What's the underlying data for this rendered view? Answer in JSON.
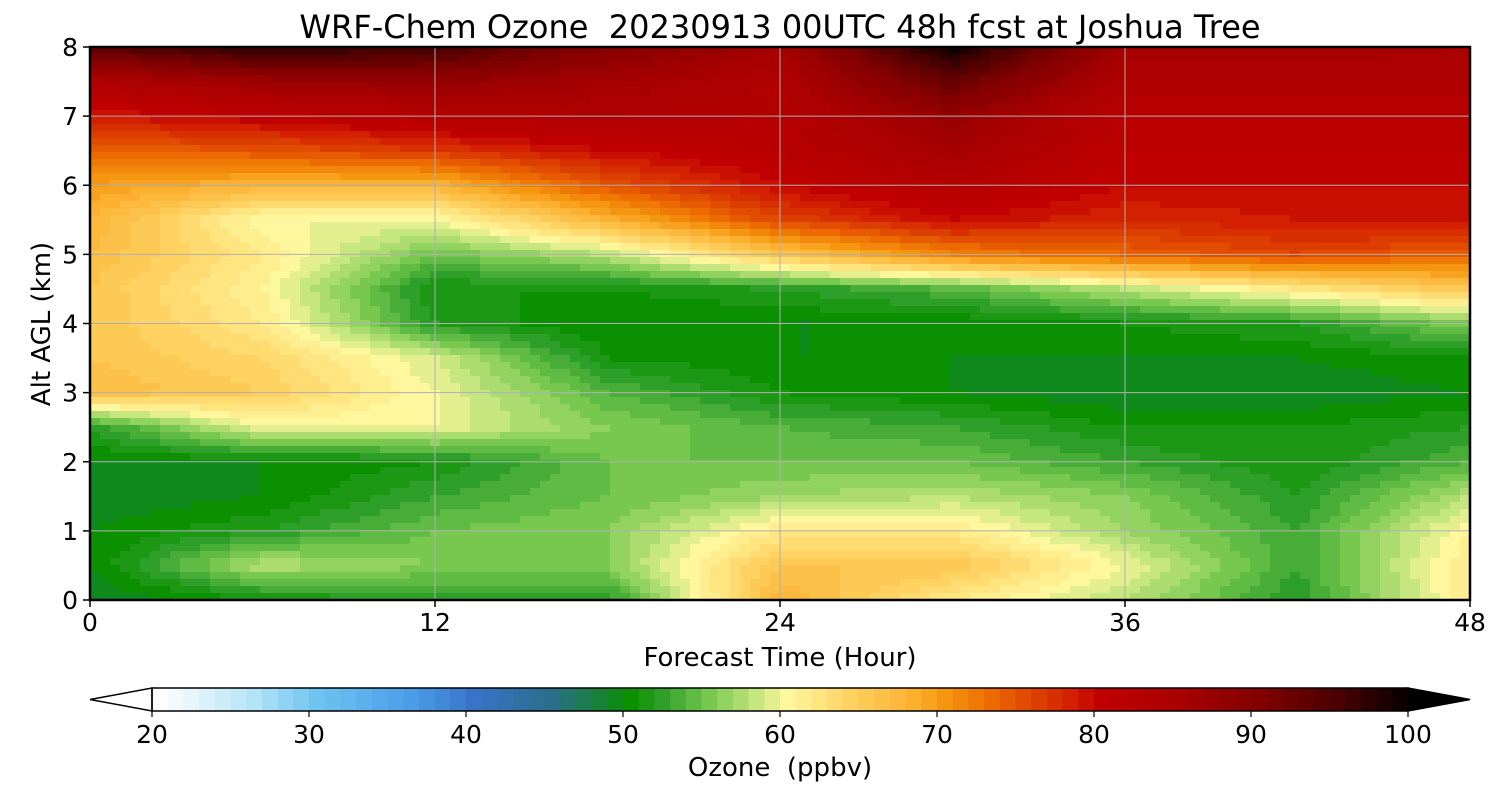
{
  "chart_data": {
    "type": "heatmap",
    "title": "WRF-Chem Ozone  20230913 00UTC 48h fcst at Joshua Tree",
    "xlabel": "Forecast Time (Hour)",
    "ylabel": "Alt AGL (km)",
    "xlim": [
      0,
      48
    ],
    "ylim": [
      0,
      8
    ],
    "x_ticks": [
      "0",
      "12",
      "24",
      "36",
      "48"
    ],
    "y_ticks": [
      "0",
      "1",
      "2",
      "3",
      "4",
      "5",
      "6",
      "7",
      "8"
    ],
    "grid": true,
    "x": [
      0,
      6,
      12,
      18,
      24,
      30,
      36,
      42,
      48
    ],
    "y": [
      0,
      0.5,
      1,
      1.5,
      2,
      2.5,
      3,
      3.5,
      4,
      4.5,
      5,
      5.5,
      6,
      6.5,
      7,
      7.5,
      8
    ],
    "z": [
      [
        49,
        51,
        52,
        52,
        68,
        62,
        58,
        52,
        62
      ],
      [
        50,
        58,
        56,
        56,
        66,
        66,
        60,
        53,
        62
      ],
      [
        50,
        52,
        55,
        56,
        62,
        62,
        57,
        53,
        61
      ],
      [
        49,
        50,
        53,
        55,
        57,
        58,
        56,
        52,
        58
      ],
      [
        50,
        50,
        51,
        55,
        55,
        55,
        53,
        51,
        54
      ],
      [
        52,
        60,
        60,
        56,
        54,
        53,
        51,
        51,
        52
      ],
      [
        67,
        65,
        60,
        54,
        51,
        50,
        49,
        49,
        50
      ],
      [
        66,
        64,
        59,
        51,
        50,
        50,
        50,
        50,
        51
      ],
      [
        66,
        62,
        52,
        50,
        50,
        50,
        51,
        52,
        56
      ],
      [
        66,
        61,
        51,
        51,
        52,
        54,
        58,
        62,
        66
      ],
      [
        67,
        62,
        55,
        58,
        66,
        72,
        74,
        76,
        74
      ],
      [
        68,
        60,
        60,
        68,
        76,
        80,
        78,
        79,
        80
      ],
      [
        70,
        68,
        68,
        75,
        80,
        83,
        80,
        80,
        80
      ],
      [
        74,
        75,
        77,
        80,
        82,
        86,
        81,
        81,
        81
      ],
      [
        79,
        81,
        83,
        84,
        83,
        88,
        82,
        82,
        82
      ],
      [
        84,
        87,
        88,
        86,
        84,
        93,
        84,
        84,
        84
      ],
      [
        94,
        98,
        96,
        90,
        86,
        100,
        86,
        86,
        85
      ]
    ],
    "colorbar": {
      "label": "Ozone  (ppbv)",
      "min": 20,
      "max": 100,
      "ticks": [
        "20",
        "30",
        "40",
        "50",
        "60",
        "70",
        "80",
        "90",
        "100"
      ],
      "extend": "both"
    },
    "colormap": [
      [
        20,
        "#ffffff"
      ],
      [
        26,
        "#b3e3f7"
      ],
      [
        30,
        "#6ec3f0"
      ],
      [
        36,
        "#4a9ee8"
      ],
      [
        40,
        "#3a73c8"
      ],
      [
        45,
        "#2a6e8a"
      ],
      [
        50,
        "#0a9000"
      ],
      [
        52,
        "#2ea02a"
      ],
      [
        55,
        "#78c850"
      ],
      [
        58,
        "#c6e680"
      ],
      [
        60,
        "#fff79e"
      ],
      [
        64,
        "#ffd262"
      ],
      [
        68,
        "#fbb030"
      ],
      [
        70,
        "#f59610"
      ],
      [
        73,
        "#ec6a00"
      ],
      [
        78,
        "#d22000"
      ],
      [
        80,
        "#c00000"
      ],
      [
        85,
        "#a80000"
      ],
      [
        90,
        "#820000"
      ],
      [
        95,
        "#4a0000"
      ],
      [
        100,
        "#000000"
      ]
    ]
  }
}
